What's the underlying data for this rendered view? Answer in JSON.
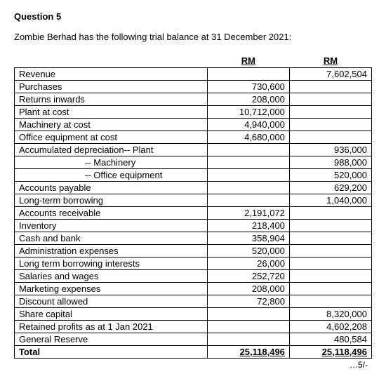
{
  "question": {
    "title": "Question 5",
    "intro": "Zombie Berhad has the following trial balance at 31 December 2021:"
  },
  "header": {
    "dr": "RM",
    "cr": "RM"
  },
  "rows": [
    {
      "label": "Revenue",
      "dr": "",
      "cr": "7,602,504"
    },
    {
      "label": "Purchases",
      "dr": "730,600",
      "cr": ""
    },
    {
      "label": "Returns inwards",
      "dr": "208,000",
      "cr": ""
    },
    {
      "label": "Plant at cost",
      "dr": "10,712,000",
      "cr": ""
    },
    {
      "label": "Machinery at cost",
      "dr": "4,940,000",
      "cr": ""
    },
    {
      "label": "Office equipment at cost",
      "dr": "4,680,000",
      "cr": ""
    },
    {
      "label": "Accumulated depreciation-- Plant",
      "dr": "",
      "cr": "936,000"
    },
    {
      "label": "-- Machinery",
      "indent": true,
      "dr": "",
      "cr": "988,000"
    },
    {
      "label": "-- Office equipment",
      "indent": true,
      "dr": "",
      "cr": "520,000"
    },
    {
      "label": "Accounts payable",
      "dr": "",
      "cr": "629,200"
    },
    {
      "label": "Long-term borrowing",
      "dr": "",
      "cr": "1,040,000"
    },
    {
      "label": "Accounts receivable",
      "dr": "2,191,072",
      "cr": ""
    },
    {
      "label": "Inventory",
      "dr": "218,400",
      "cr": ""
    },
    {
      "label": "Cash and bank",
      "dr": "358,904",
      "cr": ""
    },
    {
      "label": "Administration expenses",
      "dr": "520,000",
      "cr": ""
    },
    {
      "label": "Long term borrowing interests",
      "dr": "26,000",
      "cr": ""
    },
    {
      "label": "Salaries and wages",
      "dr": "252,720",
      "cr": ""
    },
    {
      "label": "Marketing expenses",
      "dr": "208,000",
      "cr": ""
    },
    {
      "label": "Discount allowed",
      "dr": "72,800",
      "cr": ""
    },
    {
      "label": "Share capital",
      "dr": "",
      "cr": "8,320,000"
    },
    {
      "label": "Retained profits as at 1 Jan 2021",
      "dr": "",
      "cr": "4,602,208"
    },
    {
      "label": "General Reserve",
      "dr": "",
      "cr": "480,584"
    }
  ],
  "total": {
    "label": "Total",
    "dr": "25,118,496",
    "cr": "25,118,496"
  },
  "continuation": "…5/-"
}
